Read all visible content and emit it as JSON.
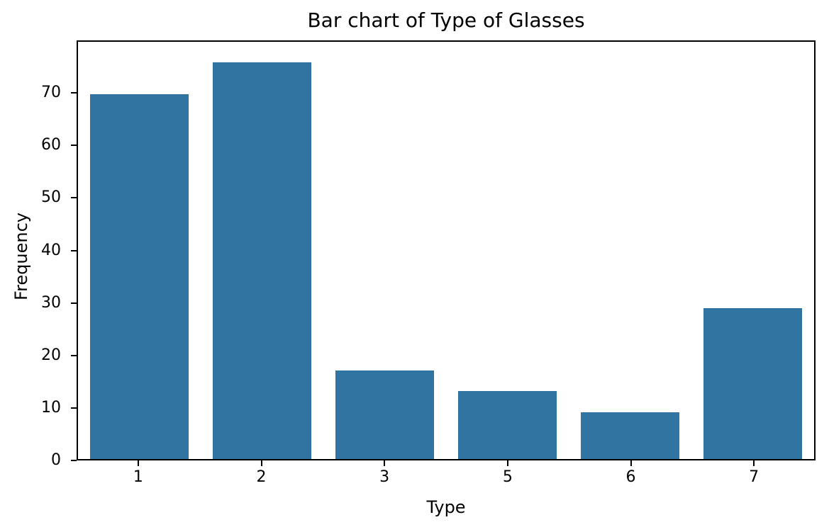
{
  "chart_data": {
    "type": "bar",
    "title": "Bar chart of Type of Glasses",
    "xlabel": "Type",
    "ylabel": "Frequency",
    "categories": [
      "1",
      "2",
      "3",
      "5",
      "6",
      "7"
    ],
    "values": [
      70,
      76,
      17,
      13,
      9,
      29
    ],
    "yticks": [
      0,
      10,
      20,
      30,
      40,
      50,
      60,
      70
    ],
    "ylim": [
      0,
      80
    ],
    "bar_color": "#3274a1",
    "axis_color": "#000000",
    "background_color": "#ffffff",
    "grid": false,
    "legend": null,
    "bar_width_fraction": 0.8
  }
}
